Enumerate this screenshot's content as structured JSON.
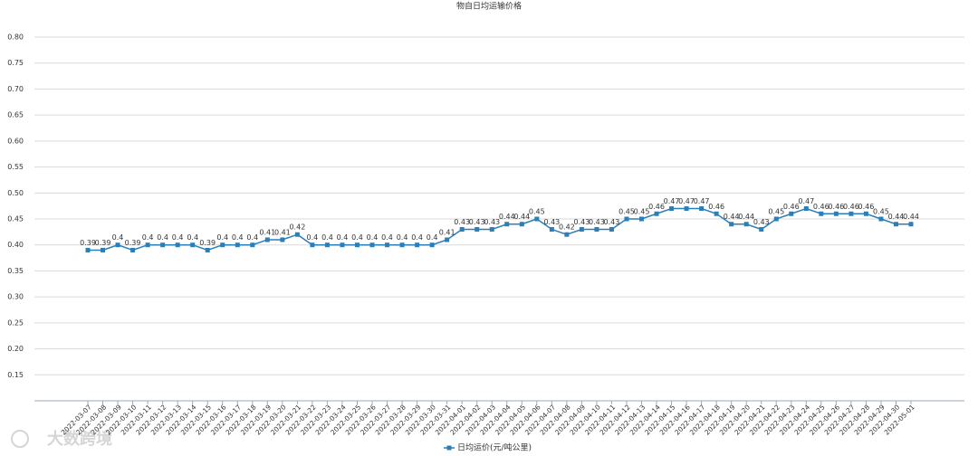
{
  "chart_data": {
    "type": "line",
    "title": "物自日均运输价格",
    "categories": [
      "2022-03-07",
      "2022-03-08",
      "2022-03-09",
      "2022-03-10",
      "2022-03-11",
      "2022-03-12",
      "2022-03-13",
      "2022-03-14",
      "2022-03-15",
      "2022-03-16",
      "2022-03-17",
      "2022-03-18",
      "2022-03-19",
      "2022-03-20",
      "2022-03-21",
      "2022-03-22",
      "2022-03-23",
      "2022-03-24",
      "2022-03-25",
      "2022-03-26",
      "2022-03-27",
      "2022-03-28",
      "2022-03-29",
      "2022-03-30",
      "2022-03-31",
      "2022-04-01",
      "2022-04-02",
      "2022-04-03",
      "2022-04-04",
      "2022-04-05",
      "2022-04-06",
      "2022-04-07",
      "2022-04-08",
      "2022-04-09",
      "2022-04-10",
      "2022-04-11",
      "2022-04-12",
      "2022-04-13",
      "2022-04-14",
      "2022-04-15",
      "2022-04-16",
      "2022-04-17",
      "2022-04-18",
      "2022-04-19",
      "2022-04-20",
      "2022-04-21",
      "2022-04-22",
      "2022-04-23",
      "2022-04-24",
      "2022-04-25",
      "2022-04-26",
      "2022-04-27",
      "2022-04-28",
      "2022-04-29",
      "2022-04-30",
      "2022-05-01"
    ],
    "series": [
      {
        "name": "日均运价(元/吨公里)",
        "color": "#2b7fb8",
        "values": [
          0.39,
          0.39,
          0.4,
          0.39,
          0.4,
          0.4,
          0.4,
          0.4,
          0.39,
          0.4,
          0.4,
          0.4,
          0.41,
          0.41,
          0.42,
          0.4,
          0.4,
          0.4,
          0.4,
          0.4,
          0.4,
          0.4,
          0.4,
          0.4,
          0.41,
          0.43,
          0.43,
          0.43,
          0.44,
          0.44,
          0.45,
          0.43,
          0.42,
          0.43,
          0.43,
          0.43,
          0.45,
          0.45,
          0.46,
          0.47,
          0.47,
          0.47,
          0.46,
          0.44,
          0.44,
          0.43,
          0.45,
          0.46,
          0.47,
          0.46,
          0.46,
          0.46,
          0.46,
          0.45,
          0.44,
          0.44
        ]
      }
    ],
    "ylim": [
      0.1,
      0.8
    ],
    "yticks": [
      0.15,
      {
        "value": 0.2,
        "label": "0.20"
      },
      0.25,
      {
        "value": 0.3,
        "label": "0.30"
      },
      0.35,
      {
        "value": 0.4,
        "label": "0.40"
      },
      0.45,
      {
        "value": 0.5,
        "label": "0.50"
      },
      0.55,
      {
        "value": 0.6,
        "label": "0.60"
      },
      0.65,
      {
        "value": 0.7,
        "label": "0.70"
      },
      0.75,
      {
        "value": 0.8,
        "label": "0.80"
      }
    ],
    "grid": true,
    "legend": "bottom",
    "watermark": "大数跨境"
  }
}
